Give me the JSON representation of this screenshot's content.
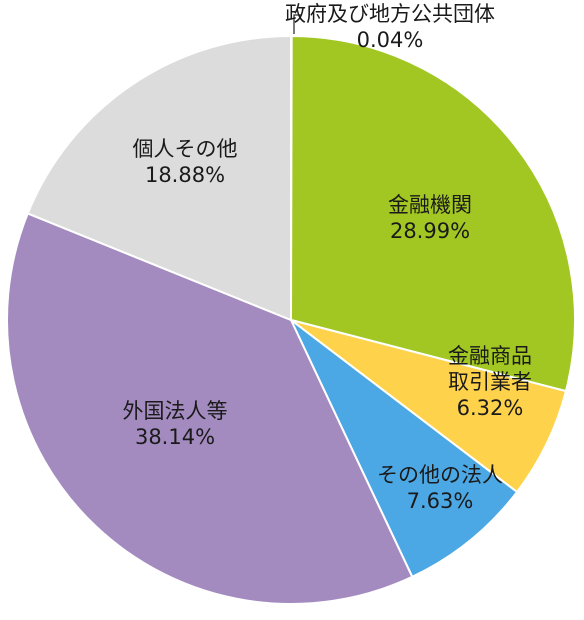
{
  "chart_data": {
    "type": "pie",
    "start_angle_deg": 0,
    "direction": "clockwise",
    "slices": [
      {
        "id": "gov",
        "label": "政府及び地方公共団体",
        "value_label": "0.04%",
        "value": 0.04,
        "color": "#ffffff"
      },
      {
        "id": "financial",
        "label": "金融機関",
        "value_label": "28.99%",
        "value": 28.99,
        "color": "#a2c723"
      },
      {
        "id": "securities",
        "label": "金融商品\n取引業者",
        "value_label": "6.32%",
        "value": 6.32,
        "color": "#fed24b"
      },
      {
        "id": "other-corp",
        "label": "その他の法人",
        "value_label": "7.63%",
        "value": 7.63,
        "color": "#4ca8e5"
      },
      {
        "id": "foreign",
        "label": "外国法人等",
        "value_label": "38.14%",
        "value": 38.14,
        "color": "#a38bc0"
      },
      {
        "id": "individual",
        "label": "個人その他",
        "value_label": "18.88%",
        "value": 18.88,
        "color": "#dcdcdc"
      }
    ]
  }
}
